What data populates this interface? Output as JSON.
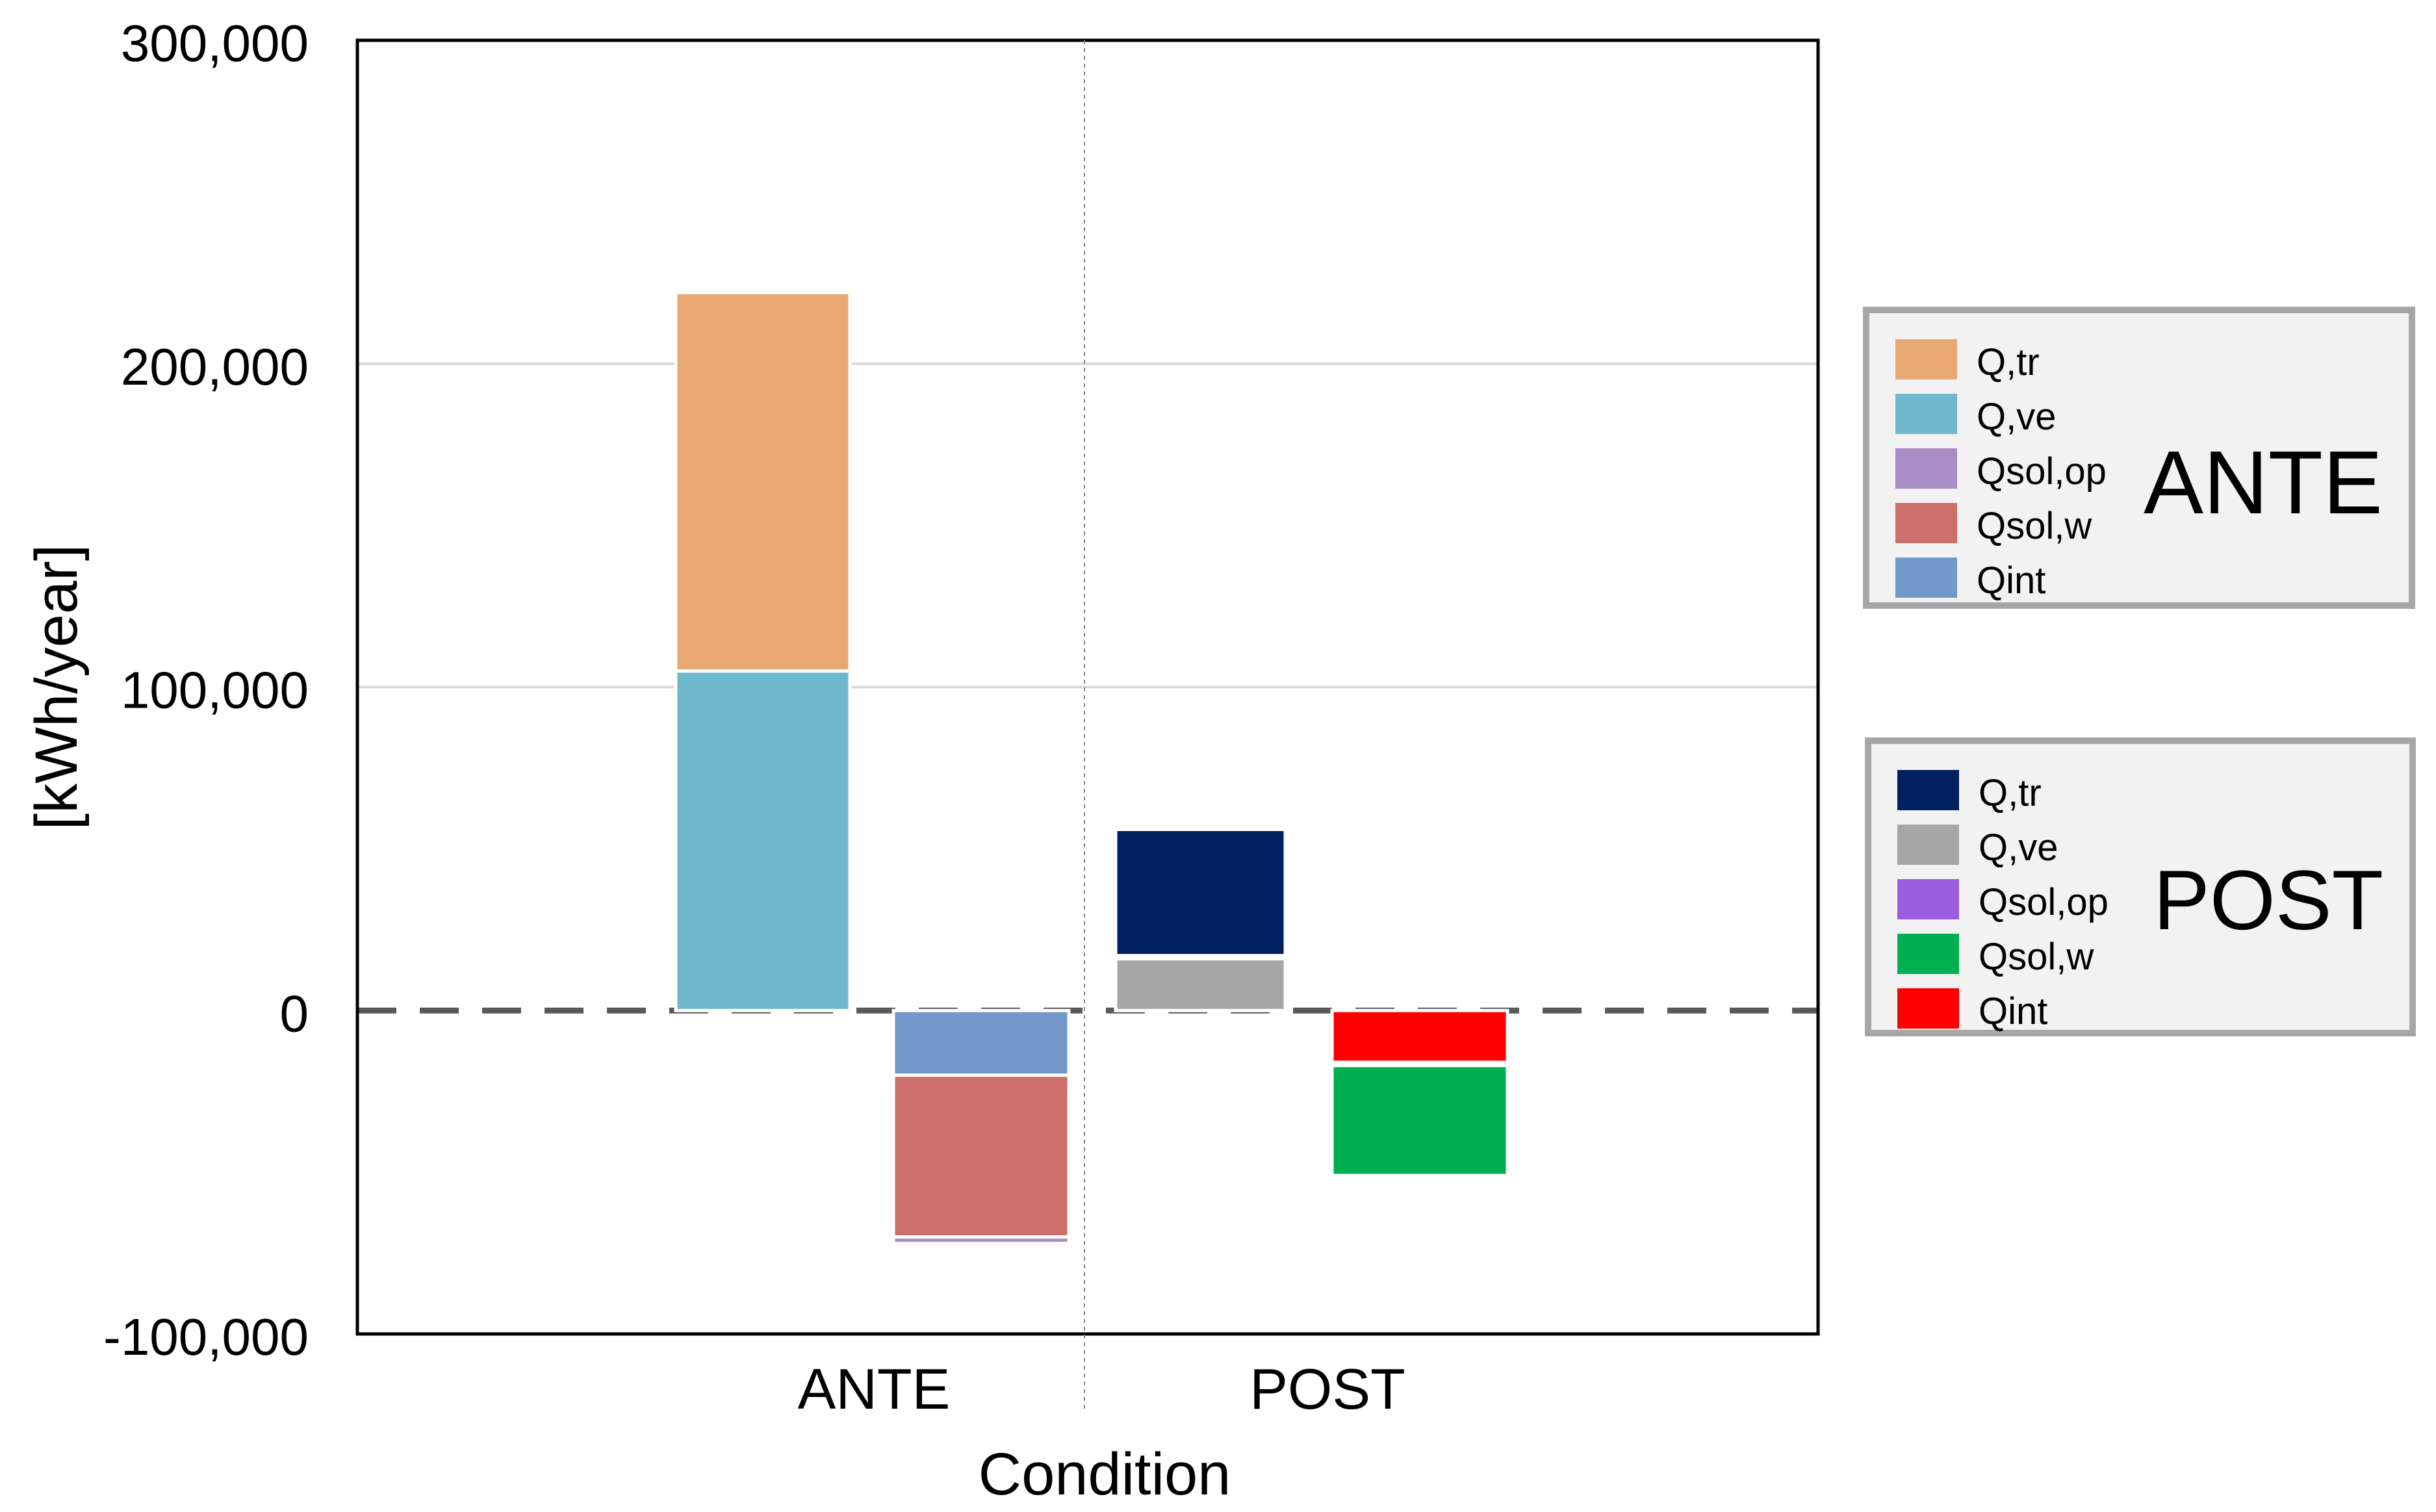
{
  "chart_data": {
    "type": "bar",
    "stacked": true,
    "ylabel": "[kWh/year]",
    "xlabel": "Condition",
    "ylim": [
      -100000,
      300000
    ],
    "yticks": [
      300000,
      200000,
      100000,
      0,
      -100000
    ],
    "ytick_labels": [
      "300,000",
      "200,000",
      "100,000",
      "0",
      "-100,000"
    ],
    "categories": [
      "ANTE",
      "POST"
    ],
    "grid": true,
    "zero_line": "dashed",
    "bars": [
      {
        "name": "ANTE-gains",
        "category": "ANTE",
        "side": "left",
        "segments": [
          {
            "series": "Q,ve",
            "from": 0,
            "to": 105000,
            "color": "#6db9cb"
          },
          {
            "series": "Q,tr",
            "from": 105000,
            "to": 222000,
            "color": "#e8a874"
          }
        ]
      },
      {
        "name": "ANTE-losses",
        "category": "ANTE",
        "side": "right",
        "segments": [
          {
            "series": "Qint",
            "from": 0,
            "to": -20000,
            "color": "#7299c9"
          },
          {
            "series": "Qsol,w",
            "from": -20000,
            "to": -70000,
            "color": "#cd706b"
          },
          {
            "series": "Qsol,op",
            "from": -70000,
            "to": -72000,
            "color": "#a98cc6"
          }
        ]
      },
      {
        "name": "POST-gains",
        "category": "POST",
        "side": "left",
        "segments": [
          {
            "series": "Q,ve",
            "from": 0,
            "to": 16000,
            "color": "#a6a6a6"
          },
          {
            "series": "Q,tr",
            "from": 17000,
            "to": 56000,
            "color": "#002060"
          }
        ]
      },
      {
        "name": "POST-losses",
        "category": "POST",
        "side": "right",
        "segments": [
          {
            "series": "Qint",
            "from": 0,
            "to": -16000,
            "color": "#ff0000"
          },
          {
            "series": "Qsol,w",
            "from": -17000,
            "to": -51000,
            "color": "#00b050"
          }
        ]
      }
    ],
    "legends": [
      {
        "title": "ANTE",
        "placement": "right-upper",
        "entries": [
          {
            "label": "Q,tr",
            "color": "#e8a874"
          },
          {
            "label": "Q,ve",
            "color": "#6db9cb"
          },
          {
            "label": "Qsol,op",
            "color": "#a98cc6"
          },
          {
            "label": "Qsol,w",
            "color": "#cd706b"
          },
          {
            "label": "Qint",
            "color": "#7299c9"
          }
        ]
      },
      {
        "title": "POST",
        "placement": "right-lower",
        "entries": [
          {
            "label": "Q,tr",
            "color": "#002060"
          },
          {
            "label": "Q,ve",
            "color": "#a6a6a6"
          },
          {
            "label": "Qsol,op",
            "color": "#9c5ce0"
          },
          {
            "label": "Qsol,w",
            "color": "#00b050"
          },
          {
            "label": "Qint",
            "color": "#ff0000"
          }
        ]
      }
    ]
  }
}
